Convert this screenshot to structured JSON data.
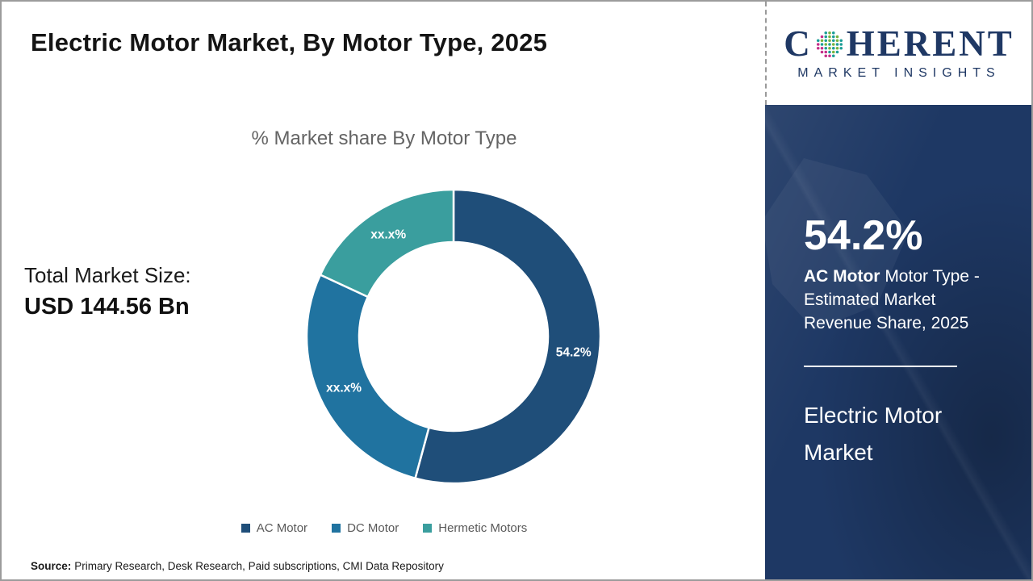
{
  "page": {
    "title": "Electric Motor Market, By Motor Type, 2025",
    "source_label": "Source:",
    "source_text": "Primary Research, Desk Research, Paid subscriptions, CMI Data Repository"
  },
  "logo": {
    "word_start": "C",
    "word_end": "HERENT",
    "subtitle": "MARKET INSIGHTS",
    "brand_color": "#1F3864",
    "globe_colors": {
      "teal": "#1C9E97",
      "green": "#78B43E",
      "magenta": "#C42F89"
    }
  },
  "left_panel": {
    "total_label": "Total Market Size:",
    "total_value": "USD 144.56 Bn"
  },
  "chart_data": {
    "type": "pie",
    "donut": true,
    "title": "% Market share By Motor Type",
    "start_angle_deg": 0,
    "direction": "clockwise",
    "segments": [
      {
        "name": "AC Motor",
        "label": "54.2%",
        "value_pct": 54.2,
        "estimated": false,
        "color": "#1F4E79"
      },
      {
        "name": "DC Motor",
        "label": "xx.x%",
        "value_pct": 27.7,
        "estimated": true,
        "color": "#2073A0"
      },
      {
        "name": "Hermetic Motors",
        "label": "xx.x%",
        "value_pct": 18.1,
        "estimated": true,
        "color": "#3A9E9E"
      }
    ],
    "legend_position": "bottom",
    "legend_text_color": "#595959"
  },
  "sidebar": {
    "background_color": "#1E3864",
    "stat_value": "54.2%",
    "stat_bold": "AC Motor",
    "stat_rest": " Motor Type - Estimated Market Revenue Share, 2025",
    "market_name": "Electric Motor Market"
  }
}
